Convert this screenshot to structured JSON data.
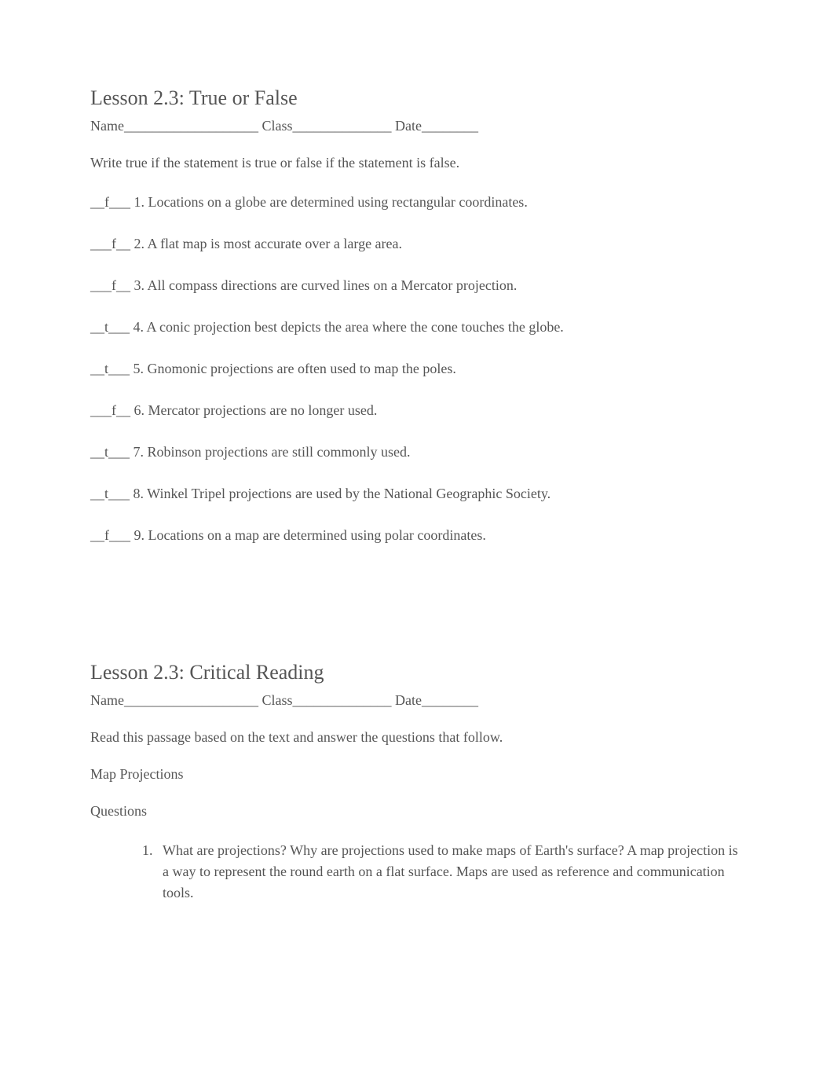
{
  "section1": {
    "title": "Lesson 2.3: True or False",
    "nameLine": "Name___________________ Class______________ Date________",
    "instruction": "Write true if the statement is true or false if the statement is false.",
    "items": [
      "__f___ 1. Locations on a globe are determined using rectangular coordinates.",
      "___f__ 2. A flat map is most accurate over a large area.",
      "___f__ 3. All compass directions are curved lines on a Mercator projection.",
      "__t___ 4. A conic projection best depicts the area where the cone touches the globe.",
      "__t___ 5. Gnomonic projections are often used to map the poles.",
      "___f__ 6. Mercator projections are no longer used.",
      "__t___ 7. Robinson projections are still commonly used.",
      "__t___ 8. Winkel Tripel projections are used by the National Geographic Society.",
      "__f___ 9. Locations on a map are determined using polar coordinates."
    ]
  },
  "section2": {
    "title": "Lesson 2.3: Critical Reading",
    "nameLine": "Name___________________ Class______________ Date________",
    "instruction": "Read this passage based on the text and answer the questions that follow.",
    "passageTitle": "Map Projections",
    "questionsLabel": "Questions",
    "questions": [
      "What are projections? Why are projections used to make maps of Earth's surface? A map projection is a way to represent the round earth on a flat surface. Maps are used as reference and communication tools."
    ]
  }
}
